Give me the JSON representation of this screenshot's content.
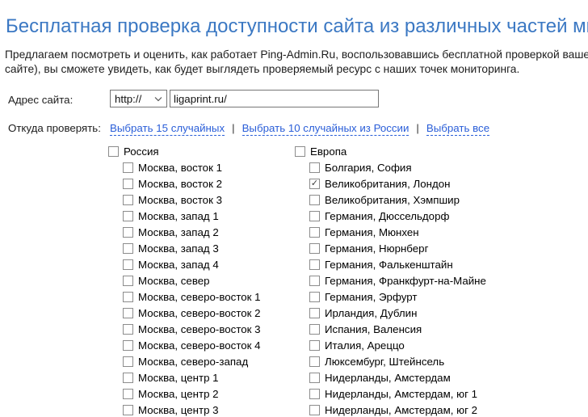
{
  "colors": {
    "title_blue": "#3b78c3",
    "link_blue": "#2a5ed8",
    "border_gray": "#767676",
    "checkbox_border": "#8c8c8c"
  },
  "page": {
    "title": "Бесплатная проверка доступности сайта из различных частей мира",
    "intro_line1": "Предлагаем посмотреть и оценить, как работает Ping-Admin.Ru, воспользовавшись бесплатной проверкой вашего сайт",
    "intro_line2": "сайте), вы сможете увидеть, как будет выглядеть проверяемый ресурс с наших точек мониторинга."
  },
  "form": {
    "address_label": "Адрес сайта:",
    "protocol_value": "http://",
    "url_value": "ligaprint.ru/",
    "from_label": "Откуда проверять:",
    "separator": "|",
    "links": [
      {
        "label": "Выбрать 15 случайных"
      },
      {
        "label": "Выбрать 10 случайных из России"
      },
      {
        "label": "Выбрать все"
      }
    ]
  },
  "groups": [
    {
      "label": "Россия",
      "checked": false,
      "items": [
        {
          "label": "Москва, восток 1",
          "checked": false
        },
        {
          "label": "Москва, восток 2",
          "checked": false
        },
        {
          "label": "Москва, восток 3",
          "checked": false
        },
        {
          "label": "Москва, запад 1",
          "checked": false
        },
        {
          "label": "Москва, запад 2",
          "checked": false
        },
        {
          "label": "Москва, запад 3",
          "checked": false
        },
        {
          "label": "Москва, запад 4",
          "checked": false
        },
        {
          "label": "Москва, север",
          "checked": false
        },
        {
          "label": "Москва, северо-восток 1",
          "checked": false
        },
        {
          "label": "Москва, северо-восток 2",
          "checked": false
        },
        {
          "label": "Москва, северо-восток 3",
          "checked": false
        },
        {
          "label": "Москва, северо-восток 4",
          "checked": false
        },
        {
          "label": "Москва, северо-запад",
          "checked": false
        },
        {
          "label": "Москва, центр 1",
          "checked": false
        },
        {
          "label": "Москва, центр 2",
          "checked": false
        },
        {
          "label": "Москва, центр 3",
          "checked": false
        }
      ]
    },
    {
      "label": "Европа",
      "checked": false,
      "items": [
        {
          "label": "Болгария, София",
          "checked": false
        },
        {
          "label": "Великобритания, Лондон",
          "checked": true
        },
        {
          "label": "Великобритания, Хэмпшир",
          "checked": false
        },
        {
          "label": "Германия, Дюссельдорф",
          "checked": false
        },
        {
          "label": "Германия, Мюнхен",
          "checked": false
        },
        {
          "label": "Германия, Нюрнберг",
          "checked": false
        },
        {
          "label": "Германия, Фалькенштайн",
          "checked": false
        },
        {
          "label": "Германия, Франкфурт-на-Майне",
          "checked": false
        },
        {
          "label": "Германия, Эрфурт",
          "checked": false
        },
        {
          "label": "Ирландия, Дублин",
          "checked": false
        },
        {
          "label": "Испания, Валенсия",
          "checked": false
        },
        {
          "label": "Италия, Ареццо",
          "checked": false
        },
        {
          "label": "Люксембург, Штейнсель",
          "checked": false
        },
        {
          "label": "Нидерланды, Амстердам",
          "checked": false
        },
        {
          "label": "Нидерланды, Амстердам, юг 1",
          "checked": false
        },
        {
          "label": "Нидерланды, Амстердам, юг 2",
          "checked": false
        }
      ]
    }
  ]
}
